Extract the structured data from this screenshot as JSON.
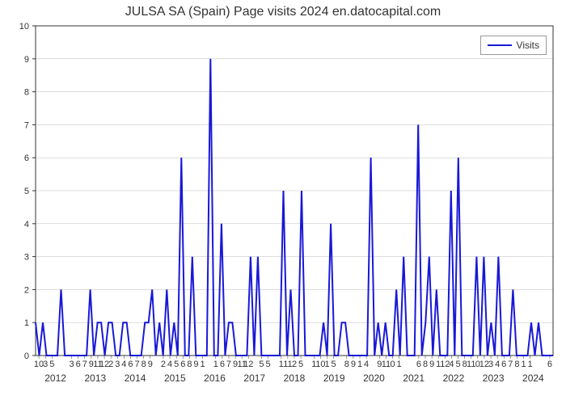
{
  "chart": {
    "type": "line",
    "title": "JULSA SA (Spain) Page visits 2024 en.datocapital.com",
    "title_fontsize": 16,
    "background_color": "#ffffff",
    "grid_color": "#bbbbbb",
    "line_color": "#1818d8",
    "line_width": 2,
    "legend": {
      "label": "Visits",
      "position": "top-right"
    },
    "y": {
      "min": 0,
      "max": 10,
      "step": 1,
      "label_fontsize": 11
    },
    "x": {
      "years": [
        "2012",
        "2013",
        "2014",
        "2015",
        "2016",
        "2017",
        "2018",
        "2019",
        "2020",
        "2021",
        "2022",
        "2023",
        "2024"
      ],
      "month_ticks": [
        "10",
        "3",
        "5",
        "",
        "",
        "3",
        "6",
        "7",
        "9",
        "11",
        "12",
        "2",
        "3",
        "4",
        "6",
        "7",
        "8",
        "9",
        "",
        "2",
        "4",
        "5",
        "6",
        "8",
        "9",
        "1",
        "",
        "1",
        "6",
        "7",
        "9",
        "11",
        "12",
        "",
        "5",
        "5",
        "",
        "1",
        "11",
        "2",
        "5",
        "",
        "1",
        "10",
        "1",
        "5",
        "",
        "8",
        "9",
        "1",
        "4",
        "",
        "9",
        "11",
        "0",
        "1",
        "",
        "",
        "6",
        "8",
        "9",
        "1",
        "12",
        "4",
        "5",
        "8",
        "11",
        "0",
        "12",
        "3",
        "4",
        "6",
        "7",
        "8",
        "1",
        "1",
        "",
        "",
        "6"
      ],
      "label_fontsize": 11
    },
    "values": [
      1,
      0,
      1,
      0,
      0,
      0,
      0,
      2,
      0,
      0,
      0,
      0,
      0,
      0,
      0,
      2,
      0,
      1,
      1,
      0,
      1,
      1,
      0,
      0,
      1,
      1,
      0,
      0,
      0,
      0,
      1,
      1,
      2,
      0,
      1,
      0,
      2,
      0,
      1,
      0,
      6,
      0,
      0,
      3,
      0,
      0,
      0,
      0,
      9,
      0,
      0,
      4,
      0,
      1,
      1,
      0,
      0,
      0,
      0,
      3,
      0,
      3,
      0,
      0,
      0,
      0,
      0,
      0,
      5,
      0,
      2,
      0,
      0,
      5,
      0,
      0,
      0,
      0,
      0,
      1,
      0,
      4,
      0,
      0,
      1,
      1,
      0,
      0,
      0,
      0,
      0,
      0,
      6,
      0,
      1,
      0,
      1,
      0,
      0,
      2,
      0,
      3,
      0,
      0,
      0,
      7,
      0,
      1,
      3,
      0,
      2,
      0,
      0,
      0,
      5,
      0,
      6,
      0,
      0,
      0,
      0,
      3,
      0,
      3,
      0,
      1,
      0,
      3,
      0,
      0,
      0,
      2,
      0,
      0,
      0,
      0,
      1,
      0,
      1,
      0,
      0,
      0,
      0
    ]
  }
}
